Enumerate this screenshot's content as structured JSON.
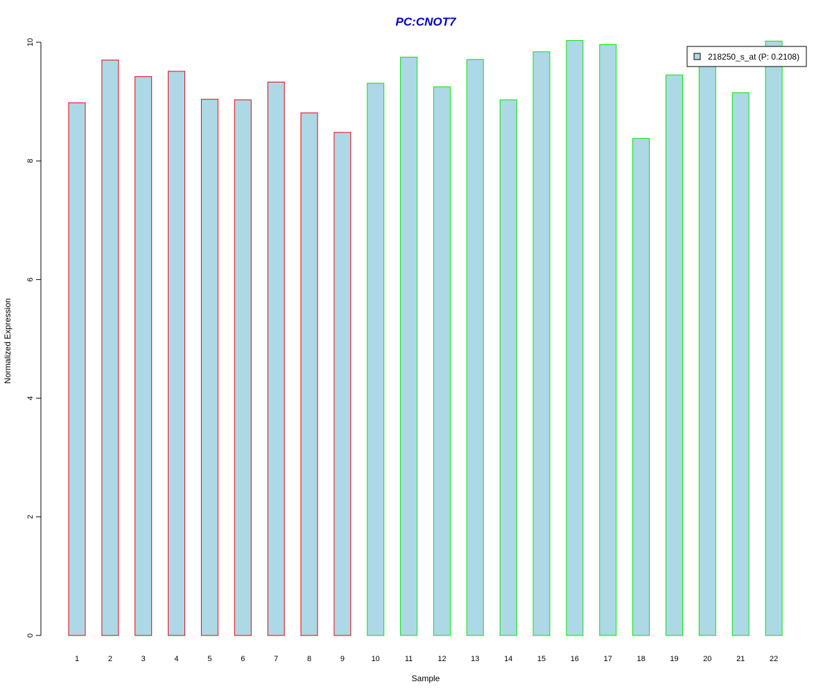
{
  "chart_data": {
    "type": "bar",
    "title": "PC:CNOT7",
    "xlabel": "Sample",
    "ylabel": "Normalized Expression",
    "ylim": [
      0,
      10
    ],
    "yticks": [
      0,
      2,
      4,
      6,
      8,
      10
    ],
    "grid": false,
    "legend_position": "top-right",
    "categories": [
      "1",
      "2",
      "3",
      "4",
      "5",
      "6",
      "7",
      "8",
      "9",
      "10",
      "11",
      "12",
      "13",
      "14",
      "15",
      "16",
      "17",
      "18",
      "19",
      "20",
      "21",
      "22"
    ],
    "series": [
      {
        "name": "218250_s_at (P: 0.2108)",
        "values": [
          8.98,
          9.7,
          9.42,
          9.51,
          9.04,
          9.03,
          9.33,
          8.81,
          8.48,
          9.31,
          9.75,
          9.25,
          9.71,
          9.03,
          9.84,
          10.03,
          9.96,
          8.38,
          9.45,
          9.66,
          9.15,
          10.02
        ]
      }
    ],
    "groups": [
      "red",
      "red",
      "red",
      "red",
      "red",
      "red",
      "red",
      "red",
      "red",
      "green",
      "green",
      "green",
      "green",
      "green",
      "green",
      "green",
      "green",
      "green",
      "green",
      "green",
      "green",
      "green"
    ]
  },
  "colors": {
    "title": "#0000cc",
    "bar_fill": "#add8e6",
    "group_red": "#e8000b",
    "group_green": "#00e600",
    "axis": "#000000",
    "legend_border": "#000000"
  }
}
